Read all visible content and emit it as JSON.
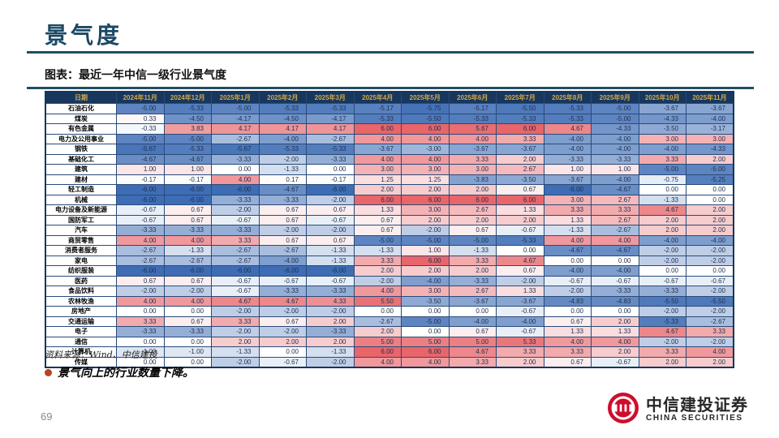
{
  "slide": {
    "title": "景气度",
    "caption": "图表：最近一年中信一级行业景气度",
    "source": "资料来源：Wind、中信建投",
    "bullet": "景气向上的行业数量下降。",
    "page_number": "69",
    "logo": {
      "name_cn": "中信建投证券",
      "name_en": "CHINA SECURITIES"
    }
  },
  "colors": {
    "title_accent": "#1b4965",
    "rule_line": "#1f4e63",
    "header_bg": "#17375e",
    "header_text": "#d3a948",
    "bullet_dot": "#b4471e",
    "logo_red": "#ce0e2d",
    "scale_negative": "#3e6db5",
    "scale_zero": "#ffffff",
    "scale_positive": "#e6666a"
  },
  "chart_data": {
    "type": "heatmap",
    "title": "最近一年中信一级行业景气度",
    "corner_label": "日期",
    "columns": [
      "2024年11月",
      "2024年12月",
      "2025年1月",
      "2025年2月",
      "2025年3月",
      "2025年4月",
      "2025年5月",
      "2025年6月",
      "2025年7月",
      "2025年8月",
      "2025年9月",
      "2025年10月",
      "2025年11月"
    ],
    "value_range": [
      -6,
      6
    ],
    "rows": [
      {
        "industry": "石油石化",
        "values": [
          "-5.00",
          "-5.33",
          "-5.00",
          "-5.33",
          "-5.33",
          "-5.17",
          "-5.75",
          "-5.17",
          "-5.50",
          "-5.33",
          "-5.00",
          "-3.67",
          "-3.67"
        ]
      },
      {
        "industry": "煤炭",
        "values": [
          "0.33",
          "-4.50",
          "-4.17",
          "-4.50",
          "-4.17",
          "-5.33",
          "-5.50",
          "-5.33",
          "-5.33",
          "-5.33",
          "-5.00",
          "-4.33",
          "-4.00"
        ]
      },
      {
        "industry": "有色金属",
        "values": [
          "-0.33",
          "3.83",
          "4.17",
          "4.17",
          "4.17",
          "6.00",
          "6.00",
          "5.67",
          "6.00",
          "4.67",
          "-4.33",
          "-3.50",
          "-3.17"
        ]
      },
      {
        "industry": "电力及公用事业",
        "values": [
          "-5.00",
          "-5.00",
          "-2.67",
          "-4.00",
          "-2.67",
          "4.00",
          "4.00",
          "4.00",
          "3.33",
          "-4.00",
          "-4.00",
          "3.00",
          "3.00"
        ]
      },
      {
        "industry": "钢铁",
        "values": [
          "-5.67",
          "-5.33",
          "-5.67",
          "-5.33",
          "-5.33",
          "-3.67",
          "-3.00",
          "-3.67",
          "-3.67",
          "-4.00",
          "-4.00",
          "-4.00",
          "-4.33"
        ]
      },
      {
        "industry": "基础化工",
        "values": [
          "-4.67",
          "-4.67",
          "-3.33",
          "-2.00",
          "-3.33",
          "4.00",
          "4.00",
          "3.33",
          "2.00",
          "-3.33",
          "-3.33",
          "3.33",
          "2.00"
        ]
      },
      {
        "industry": "建筑",
        "values": [
          "1.00",
          "1.00",
          "0.00",
          "-1.33",
          "0.00",
          "3.00",
          "3.00",
          "3.00",
          "2.67",
          "1.00",
          "1.00",
          "-5.00",
          "-5.00"
        ]
      },
      {
        "industry": "建材",
        "values": [
          "-0.17",
          "-0.17",
          "4.00",
          "0.17",
          "-0.17",
          "1.25",
          "1.25",
          "-3.83",
          "-3.50",
          "-3.67",
          "-4.00",
          "-0.75",
          "-5.25"
        ]
      },
      {
        "industry": "轻工制造",
        "values": [
          "-6.00",
          "-6.00",
          "-6.00",
          "-4.67",
          "-6.00",
          "2.00",
          "2.00",
          "2.00",
          "0.67",
          "-6.00",
          "-4.67",
          "0.00",
          "0.00"
        ]
      },
      {
        "industry": "机械",
        "values": [
          "-6.00",
          "-6.00",
          "-3.33",
          "-3.33",
          "-2.00",
          "6.00",
          "6.00",
          "6.00",
          "6.00",
          "3.00",
          "2.67",
          "-1.33",
          "0.00"
        ]
      },
      {
        "industry": "电力设备及新能源",
        "values": [
          "-0.67",
          "0.67",
          "-2.00",
          "0.67",
          "0.67",
          "1.33",
          "3.00",
          "2.67",
          "1.33",
          "3.33",
          "3.33",
          "4.67",
          "2.00"
        ]
      },
      {
        "industry": "国防军工",
        "values": [
          "-0.67",
          "0.67",
          "-0.67",
          "0.67",
          "-0.67",
          "0.67",
          "2.00",
          "2.00",
          "2.00",
          "1.33",
          "2.67",
          "2.00",
          "2.00"
        ]
      },
      {
        "industry": "汽车",
        "values": [
          "-3.33",
          "-3.33",
          "-3.33",
          "-2.00",
          "-2.00",
          "0.67",
          "-2.00",
          "0.67",
          "-0.67",
          "-1.33",
          "-2.67",
          "2.00",
          "2.00"
        ]
      },
      {
        "industry": "商贸零售",
        "values": [
          "4.00",
          "4.00",
          "3.33",
          "0.67",
          "0.67",
          "-5.00",
          "-5.00",
          "-5.00",
          "-5.33",
          "4.00",
          "4.00",
          "-4.00",
          "-4.00"
        ]
      },
      {
        "industry": "消费者服务",
        "values": [
          "-2.67",
          "-1.33",
          "-2.67",
          "-2.67",
          "-1.33",
          "-1.33",
          "1.00",
          "-1.33",
          "0.00",
          "-4.67",
          "-4.67",
          "-2.00",
          "-2.00"
        ]
      },
      {
        "industry": "家电",
        "values": [
          "-2.67",
          "-2.67",
          "-2.67",
          "-4.00",
          "-1.33",
          "3.33",
          "6.00",
          "3.33",
          "4.67",
          "0.00",
          "0.00",
          "-2.00",
          "-2.00"
        ]
      },
      {
        "industry": "纺织服装",
        "values": [
          "-6.00",
          "-6.00",
          "-6.00",
          "-6.00",
          "-6.00",
          "2.00",
          "2.00",
          "2.00",
          "0.67",
          "-4.00",
          "-4.00",
          "0.00",
          "0.00"
        ]
      },
      {
        "industry": "医药",
        "values": [
          "0.67",
          "0.67",
          "-0.67",
          "-0.67",
          "-0.67",
          "-2.00",
          "-4.00",
          "-3.33",
          "-2.00",
          "-0.67",
          "-0.67",
          "-0.67",
          "-0.67"
        ]
      },
      {
        "industry": "食品饮料",
        "values": [
          "-2.00",
          "-2.00",
          "-0.67",
          "-3.33",
          "-3.33",
          "4.00",
          "3.00",
          "2.67",
          "1.33",
          "-2.00",
          "-3.33",
          "-3.33",
          "-2.00"
        ]
      },
      {
        "industry": "农林牧渔",
        "values": [
          "4.00",
          "4.00",
          "4.67",
          "4.67",
          "4.33",
          "5.50",
          "-3.50",
          "-3.67",
          "-3.67",
          "-4.83",
          "-4.83",
          "-5.50",
          "-5.50"
        ]
      },
      {
        "industry": "房地产",
        "values": [
          "0.00",
          "0.00",
          "-2.00",
          "-2.00",
          "-2.00",
          "0.00",
          "0.00",
          "0.00",
          "-0.67",
          "0.00",
          "0.00",
          "-2.00",
          "-2.00"
        ]
      },
      {
        "industry": "交通运输",
        "values": [
          "3.33",
          "0.67",
          "3.33",
          "0.67",
          "2.00",
          "-2.67",
          "-5.00",
          "-4.00",
          "-4.00",
          "0.67",
          "2.00",
          "-5.33",
          "-2.67"
        ]
      },
      {
        "industry": "电子",
        "values": [
          "-3.33",
          "-3.33",
          "-2.00",
          "-2.00",
          "-3.33",
          "2.00",
          "0.00",
          "0.67",
          "-0.67",
          "1.33",
          "1.33",
          "4.67",
          "3.33"
        ]
      },
      {
        "industry": "通信",
        "values": [
          "0.00",
          "0.00",
          "2.00",
          "2.00",
          "2.00",
          "5.00",
          "5.00",
          "5.00",
          "5.33",
          "4.00",
          "4.00",
          "-2.00",
          "-2.00"
        ]
      },
      {
        "industry": "计算机",
        "values": [
          "-1.00",
          "-1.00",
          "-1.33",
          "0.00",
          "-1.33",
          "6.00",
          "6.00",
          "4.67",
          "3.33",
          "3.33",
          "2.00",
          "3.33",
          "4.00"
        ]
      },
      {
        "industry": "传媒",
        "values": [
          "0.00",
          "0.00",
          "-2.00",
          "-0.67",
          "-2.00",
          "4.00",
          "4.00",
          "3.33",
          "2.00",
          "0.67",
          "-0.67",
          "2.00",
          "2.00"
        ]
      }
    ]
  }
}
